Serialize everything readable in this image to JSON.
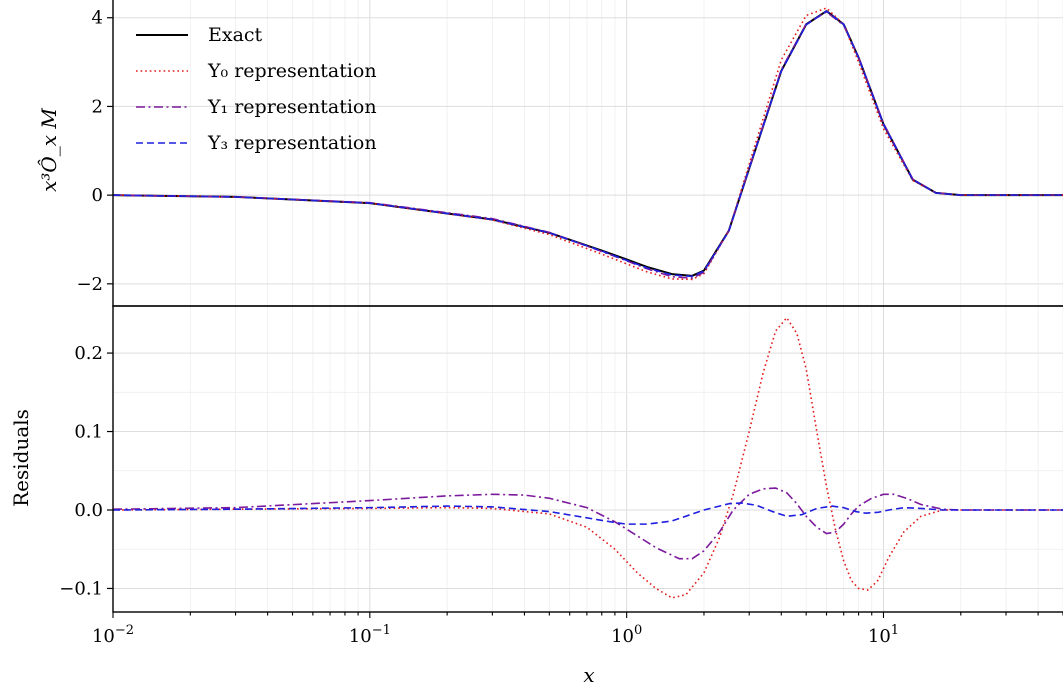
{
  "chart_data": [
    {
      "type": "line",
      "panel": "top",
      "xscale": "log",
      "xlim": [
        0.01,
        50
      ],
      "ylim": [
        -2.5,
        4.4
      ],
      "ylabel": "x³Ô_x M",
      "yticks": [
        -2,
        0,
        2,
        4
      ],
      "ytick_labels": [
        "−2",
        "0",
        "2",
        "4"
      ],
      "grid": true,
      "legend_position": "top-left",
      "series": [
        {
          "name": "Exact",
          "color": "#000000",
          "dash": "solid",
          "x": [
            0.01,
            0.03,
            0.1,
            0.3,
            0.5,
            0.8,
            1.0,
            1.2,
            1.5,
            1.8,
            2.0,
            2.5,
            3.0,
            4.0,
            5.0,
            6.0,
            7.0,
            8.0,
            10.0,
            13.0,
            16.0,
            20.0,
            30.0,
            50.0
          ],
          "y": [
            0.0,
            -0.04,
            -0.18,
            -0.55,
            -0.85,
            -1.25,
            -1.45,
            -1.62,
            -1.78,
            -1.82,
            -1.7,
            -0.8,
            0.6,
            2.8,
            3.85,
            4.15,
            3.85,
            3.1,
            1.6,
            0.35,
            0.05,
            0.0,
            0.0,
            0.0
          ]
        },
        {
          "name": "Y₀ representation",
          "color": "#e41a1c",
          "dash": "dotted",
          "x": [
            0.01,
            0.03,
            0.1,
            0.3,
            0.5,
            0.8,
            1.0,
            1.2,
            1.5,
            1.8,
            2.0,
            2.5,
            3.0,
            4.0,
            5.0,
            6.0,
            7.0,
            8.0,
            10.0,
            13.0,
            16.0,
            20.0,
            30.0,
            50.0
          ],
          "y": [
            0.0,
            -0.04,
            -0.18,
            -0.56,
            -0.89,
            -1.33,
            -1.55,
            -1.73,
            -1.89,
            -1.9,
            -1.77,
            -0.8,
            0.7,
            3.05,
            4.05,
            4.22,
            3.85,
            3.0,
            1.5,
            0.33,
            0.05,
            0.0,
            0.0,
            0.0
          ]
        },
        {
          "name": "Y₁ representation",
          "color": "#7b1a9c",
          "dash": "dashdot",
          "x": [
            0.01,
            0.03,
            0.1,
            0.3,
            0.5,
            0.8,
            1.0,
            1.2,
            1.5,
            1.8,
            2.0,
            2.5,
            3.0,
            4.0,
            5.0,
            6.0,
            7.0,
            8.0,
            10.0,
            13.0,
            16.0,
            20.0,
            30.0,
            50.0
          ],
          "y": [
            0.0,
            -0.04,
            -0.17,
            -0.53,
            -0.84,
            -1.27,
            -1.48,
            -1.66,
            -1.84,
            -1.87,
            -1.74,
            -0.8,
            0.61,
            2.83,
            3.86,
            4.13,
            3.83,
            3.11,
            1.62,
            0.36,
            0.05,
            0.0,
            0.0,
            0.0
          ]
        },
        {
          "name": "Y₃ representation",
          "color": "#1f1fdf",
          "dash": "dashed",
          "x": [
            0.01,
            0.03,
            0.1,
            0.3,
            0.5,
            0.8,
            1.0,
            1.2,
            1.5,
            1.8,
            2.0,
            2.5,
            3.0,
            4.0,
            5.0,
            6.0,
            7.0,
            8.0,
            10.0,
            13.0,
            16.0,
            20.0,
            30.0,
            50.0
          ],
          "y": [
            0.0,
            -0.04,
            -0.18,
            -0.55,
            -0.85,
            -1.26,
            -1.47,
            -1.64,
            -1.8,
            -1.83,
            -1.71,
            -0.81,
            0.6,
            2.79,
            3.84,
            4.15,
            3.85,
            3.1,
            1.6,
            0.35,
            0.05,
            0.0,
            0.0,
            0.0
          ]
        }
      ]
    },
    {
      "type": "line",
      "panel": "bottom",
      "xscale": "log",
      "xlim": [
        0.01,
        50
      ],
      "ylim": [
        -0.13,
        0.26
      ],
      "xlabel": "x",
      "ylabel": "Residuals",
      "yticks": [
        -0.1,
        0.0,
        0.1,
        0.2
      ],
      "ytick_labels": [
        "−0.1",
        "0.0",
        "0.1",
        "0.2"
      ],
      "xticks": [
        0.01,
        0.1,
        1,
        10
      ],
      "xtick_labels": [
        {
          "base": "10",
          "exp": "−2"
        },
        {
          "base": "10",
          "exp": "−1"
        },
        {
          "base": "10",
          "exp": "0"
        },
        {
          "base": "10",
          "exp": "1"
        }
      ],
      "grid": true,
      "series": [
        {
          "name": "Y₀ representation",
          "color": "#e41a1c",
          "dash": "dotted",
          "x": [
            0.01,
            0.03,
            0.1,
            0.2,
            0.3,
            0.5,
            0.7,
            0.9,
            1.1,
            1.3,
            1.5,
            1.7,
            2.0,
            2.3,
            2.6,
            3.0,
            3.4,
            3.8,
            4.2,
            4.6,
            5.0,
            5.5,
            6.0,
            6.5,
            7.0,
            7.5,
            8.0,
            8.7,
            9.5,
            10.5,
            12.0,
            14.0,
            17.0,
            20.0,
            30.0,
            50.0
          ],
          "y": [
            0.0,
            0.001,
            0.002,
            0.003,
            0.002,
            -0.005,
            -0.022,
            -0.05,
            -0.08,
            -0.1,
            -0.112,
            -0.108,
            -0.08,
            -0.035,
            0.02,
            0.1,
            0.175,
            0.228,
            0.245,
            0.225,
            0.18,
            0.1,
            0.03,
            -0.025,
            -0.065,
            -0.09,
            -0.1,
            -0.102,
            -0.09,
            -0.06,
            -0.028,
            -0.008,
            0.0,
            0.0,
            0.0,
            0.0
          ]
        },
        {
          "name": "Y₁ representation",
          "color": "#7b1a9c",
          "dash": "dashdot",
          "x": [
            0.01,
            0.03,
            0.1,
            0.2,
            0.3,
            0.4,
            0.5,
            0.7,
            0.9,
            1.1,
            1.3,
            1.6,
            1.8,
            2.0,
            2.3,
            2.6,
            3.0,
            3.4,
            3.8,
            4.2,
            4.6,
            5.0,
            5.5,
            6.0,
            6.5,
            7.0,
            7.5,
            8.0,
            9.0,
            10.0,
            11.0,
            12.5,
            14.0,
            17.0,
            20.0,
            30.0,
            50.0
          ],
          "y": [
            0.001,
            0.003,
            0.012,
            0.018,
            0.02,
            0.019,
            0.015,
            0.003,
            -0.015,
            -0.033,
            -0.048,
            -0.062,
            -0.062,
            -0.052,
            -0.028,
            0.0,
            0.02,
            0.027,
            0.028,
            0.022,
            0.008,
            -0.008,
            -0.022,
            -0.03,
            -0.028,
            -0.018,
            -0.005,
            0.005,
            0.015,
            0.02,
            0.02,
            0.014,
            0.007,
            0.001,
            0.0,
            0.0,
            0.0
          ]
        },
        {
          "name": "Y₃ representation",
          "color": "#1f1fdf",
          "dash": "dashed",
          "x": [
            0.01,
            0.03,
            0.1,
            0.2,
            0.3,
            0.5,
            0.7,
            0.9,
            1.0,
            1.2,
            1.5,
            2.0,
            2.5,
            2.8,
            3.2,
            3.7,
            4.2,
            4.8,
            5.5,
            6.3,
            7.0,
            7.8,
            8.5,
            9.5,
            10.5,
            12.0,
            14.0,
            17.0,
            20.0,
            30.0,
            50.0
          ],
          "y": [
            0.0,
            0.001,
            0.003,
            0.005,
            0.004,
            -0.002,
            -0.01,
            -0.016,
            -0.018,
            -0.018,
            -0.014,
            0.0,
            0.008,
            0.009,
            0.006,
            -0.002,
            -0.008,
            -0.006,
            0.002,
            0.005,
            0.003,
            -0.002,
            -0.004,
            -0.003,
            0.0,
            0.003,
            0.002,
            0.0,
            0.0,
            0.0,
            0.0
          ]
        }
      ]
    }
  ]
}
